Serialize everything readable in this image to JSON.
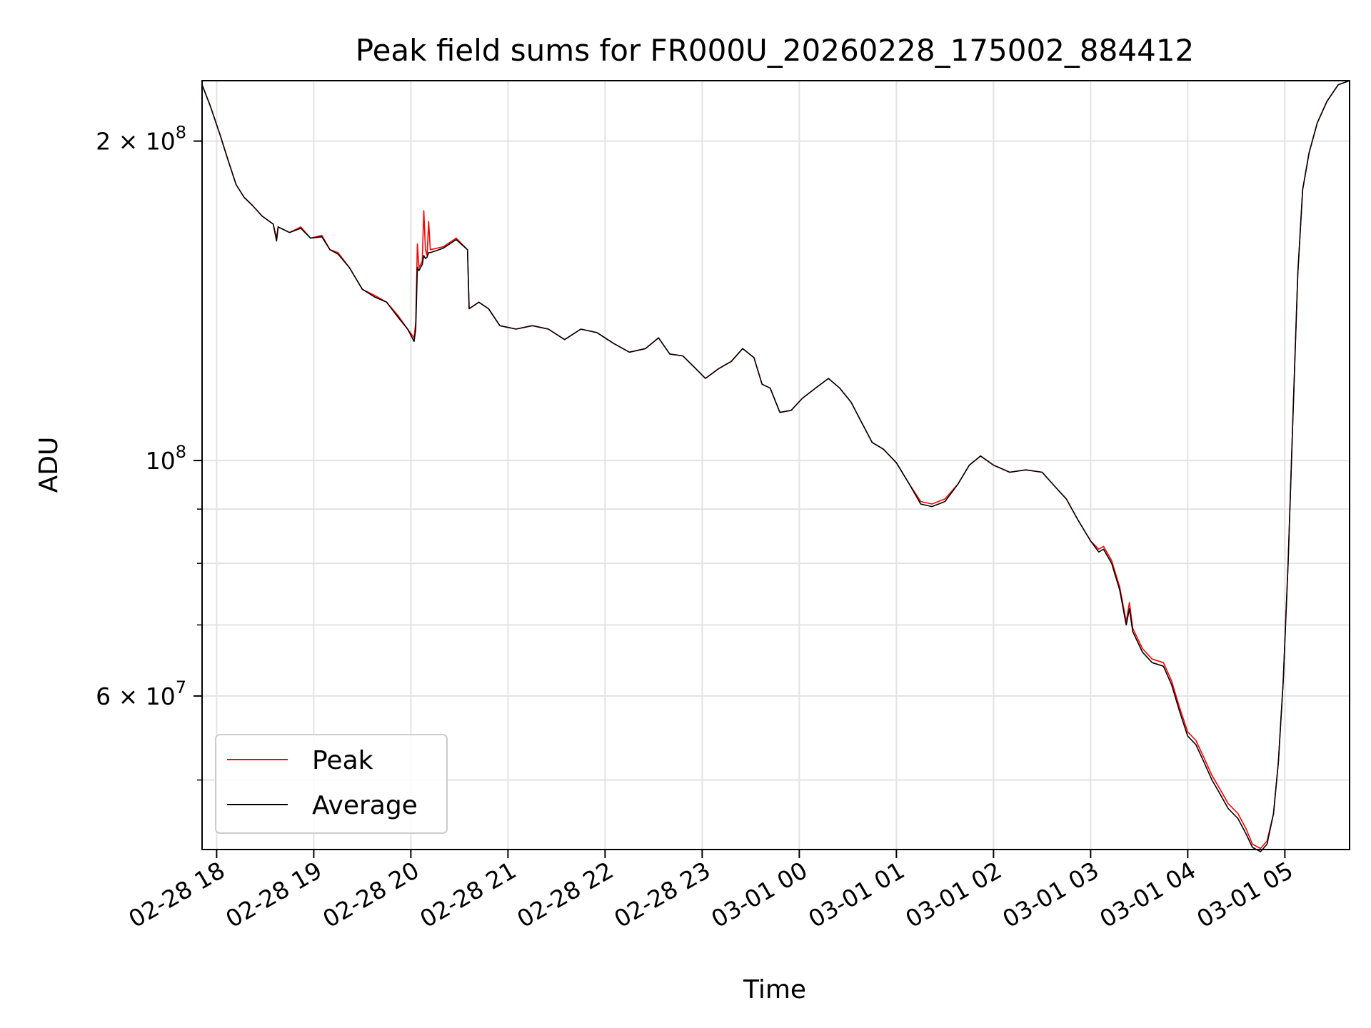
{
  "chart_data": {
    "type": "line",
    "title": "Peak field sums for FR000U_20260228_175002_884412",
    "xlabel": "Time",
    "ylabel": "ADU",
    "y_scale": "log",
    "grid": true,
    "legend_position": "lower-left",
    "x_range": [
      "02-28 17:51",
      "03-01 05:40"
    ],
    "y_range": [
      43000000,
      228000000
    ],
    "x_ticks": [
      "02-28 18",
      "02-28 19",
      "02-28 20",
      "02-28 21",
      "02-28 22",
      "02-28 23",
      "03-01 00",
      "03-01 01",
      "03-01 02",
      "03-01 03",
      "03-01 04",
      "03-01 05"
    ],
    "y_major_ticks": [
      {
        "value": 200000000,
        "mantissa": "2",
        "exponent": "8"
      },
      {
        "value": 100000000,
        "mantissa": "",
        "exponent": "8"
      },
      {
        "value": 60000000,
        "mantissa": "6",
        "exponent": "7"
      }
    ],
    "y_minor_ticks": [
      50000000,
      70000000,
      80000000,
      90000000,
      300000000
    ],
    "series": [
      {
        "name": "Peak",
        "color": "#ff0000",
        "points": [
          [
            "02-28 17:51",
            226000000
          ],
          [
            "02-28 17:56",
            216000000
          ],
          [
            "02-28 18:02",
            203000000
          ],
          [
            "02-28 18:07",
            192000000
          ],
          [
            "02-28 18:12",
            182000000
          ],
          [
            "02-28 18:17",
            177000000
          ],
          [
            "02-28 18:22",
            174000000
          ],
          [
            "02-28 18:28",
            170000000
          ],
          [
            "02-28 18:35",
            167000000
          ],
          [
            "02-28 18:37",
            162000000
          ],
          [
            "02-28 18:38",
            166000000
          ],
          [
            "02-28 18:45",
            164000000
          ],
          [
            "02-28 18:52",
            166000000
          ],
          [
            "02-28 18:58",
            162000000
          ],
          [
            "02-28 19:05",
            163000000
          ],
          [
            "02-28 19:10",
            158000000
          ],
          [
            "02-28 19:15",
            157000000
          ],
          [
            "02-28 19:22",
            152000000
          ],
          [
            "02-28 19:30",
            145000000
          ],
          [
            "02-28 19:38",
            143000000
          ],
          [
            "02-28 19:45",
            141000000
          ],
          [
            "02-28 19:52",
            137000000
          ],
          [
            "02-28 19:58",
            133000000
          ],
          [
            "02-28 20:02",
            130500000
          ],
          [
            "02-28 20:03",
            135000000
          ],
          [
            "02-28 20:04",
            160000000
          ],
          [
            "02-28 20:05",
            152000000
          ],
          [
            "02-28 20:07",
            154000000
          ],
          [
            "02-28 20:08",
            172000000
          ],
          [
            "02-28 20:09",
            158000000
          ],
          [
            "02-28 20:10",
            156000000
          ],
          [
            "02-28 20:11",
            168000000
          ],
          [
            "02-28 20:12",
            158000000
          ],
          [
            "02-28 20:20",
            159000000
          ],
          [
            "02-28 20:28",
            162000000
          ],
          [
            "02-28 20:35",
            158000000
          ],
          [
            "02-28 20:36",
            139000000
          ],
          [
            "02-28 20:42",
            141000000
          ],
          [
            "02-28 20:48",
            139000000
          ],
          [
            "02-28 20:55",
            134000000
          ],
          [
            "02-28 21:05",
            133000000
          ],
          [
            "02-28 21:15",
            134000000
          ],
          [
            "02-28 21:25",
            133000000
          ],
          [
            "02-28 21:35",
            130000000
          ],
          [
            "02-28 21:45",
            133000000
          ],
          [
            "02-28 21:55",
            132000000
          ],
          [
            "02-28 22:05",
            129000000
          ],
          [
            "02-28 22:15",
            126500000
          ],
          [
            "02-28 22:25",
            127500000
          ],
          [
            "02-28 22:33",
            130500000
          ],
          [
            "02-28 22:40",
            126000000
          ],
          [
            "02-28 22:48",
            125500000
          ],
          [
            "02-28 22:55",
            122500000
          ],
          [
            "02-28 23:02",
            119500000
          ],
          [
            "02-28 23:10",
            122000000
          ],
          [
            "02-28 23:18",
            124000000
          ],
          [
            "02-28 23:25",
            127500000
          ],
          [
            "02-28 23:32",
            125000000
          ],
          [
            "02-28 23:37",
            118000000
          ],
          [
            "02-28 23:42",
            117000000
          ],
          [
            "02-28 23:48",
            111000000
          ],
          [
            "02-28 23:55",
            111500000
          ],
          [
            "03-01 00:02",
            114500000
          ],
          [
            "03-01 00:10",
            117000000
          ],
          [
            "03-01 00:18",
            119500000
          ],
          [
            "03-01 00:25",
            117000000
          ],
          [
            "03-01 00:32",
            113500000
          ],
          [
            "03-01 00:38",
            109000000
          ],
          [
            "03-01 00:45",
            104000000
          ],
          [
            "03-01 00:52",
            102500000
          ],
          [
            "03-01 01:00",
            99500000
          ],
          [
            "03-01 01:08",
            95000000
          ],
          [
            "03-01 01:15",
            91500000
          ],
          [
            "03-01 01:22",
            91000000
          ],
          [
            "03-01 01:30",
            92000000
          ],
          [
            "03-01 01:38",
            95000000
          ],
          [
            "03-01 01:45",
            99000000
          ],
          [
            "03-01 01:52",
            101000000
          ],
          [
            "03-01 02:00",
            99000000
          ],
          [
            "03-01 02:10",
            97500000
          ],
          [
            "03-01 02:20",
            98000000
          ],
          [
            "03-01 02:30",
            97500000
          ],
          [
            "03-01 02:38",
            94500000
          ],
          [
            "03-01 02:45",
            92000000
          ],
          [
            "03-01 02:52",
            88000000
          ],
          [
            "03-01 03:00",
            84000000
          ],
          [
            "03-01 03:05",
            82500000
          ],
          [
            "03-01 03:08",
            83000000
          ],
          [
            "03-01 03:13",
            80500000
          ],
          [
            "03-01 03:18",
            76000000
          ],
          [
            "03-01 03:22",
            70500000
          ],
          [
            "03-01 03:24",
            73500000
          ],
          [
            "03-01 03:26",
            69500000
          ],
          [
            "03-01 03:32",
            66500000
          ],
          [
            "03-01 03:38",
            65000000
          ],
          [
            "03-01 03:45",
            64500000
          ],
          [
            "03-01 03:50",
            62000000
          ],
          [
            "03-01 03:55",
            58500000
          ],
          [
            "03-01 04:00",
            55500000
          ],
          [
            "03-01 04:05",
            54500000
          ],
          [
            "03-01 04:10",
            52500000
          ],
          [
            "03-01 04:15",
            50500000
          ],
          [
            "03-01 04:20",
            49000000
          ],
          [
            "03-01 04:25",
            47500000
          ],
          [
            "03-01 04:31",
            46500000
          ],
          [
            "03-01 04:36",
            45000000
          ],
          [
            "03-01 04:40",
            43500000
          ],
          [
            "03-01 04:45",
            43100000
          ],
          [
            "03-01 04:49",
            43800000
          ],
          [
            "03-01 04:53",
            46500000
          ],
          [
            "03-01 04:56",
            52000000
          ],
          [
            "03-01 04:59",
            62000000
          ],
          [
            "03-01 05:02",
            80000000
          ],
          [
            "03-01 05:05",
            110000000
          ],
          [
            "03-01 05:08",
            150000000
          ],
          [
            "03-01 05:11",
            180000000
          ],
          [
            "03-01 05:15",
            195000000
          ],
          [
            "03-01 05:20",
            208000000
          ],
          [
            "03-01 05:26",
            218000000
          ],
          [
            "03-01 05:33",
            226000000
          ],
          [
            "03-01 05:40",
            228000000
          ]
        ]
      },
      {
        "name": "Average",
        "color": "#000000",
        "points": [
          [
            "02-28 17:51",
            226000000
          ],
          [
            "02-28 17:56",
            216000000
          ],
          [
            "02-28 18:02",
            203000000
          ],
          [
            "02-28 18:07",
            192000000
          ],
          [
            "02-28 18:12",
            182000000
          ],
          [
            "02-28 18:17",
            177000000
          ],
          [
            "02-28 18:22",
            174000000
          ],
          [
            "02-28 18:28",
            170000000
          ],
          [
            "02-28 18:35",
            167000000
          ],
          [
            "02-28 18:37",
            161000000
          ],
          [
            "02-28 18:38",
            166000000
          ],
          [
            "02-28 18:45",
            164000000
          ],
          [
            "02-28 18:52",
            165500000
          ],
          [
            "02-28 18:58",
            162000000
          ],
          [
            "02-28 19:05",
            162500000
          ],
          [
            "02-28 19:10",
            158000000
          ],
          [
            "02-28 19:15",
            156500000
          ],
          [
            "02-28 19:22",
            152000000
          ],
          [
            "02-28 19:30",
            145000000
          ],
          [
            "02-28 19:38",
            142500000
          ],
          [
            "02-28 19:45",
            141000000
          ],
          [
            "02-28 19:52",
            136500000
          ],
          [
            "02-28 19:58",
            133000000
          ],
          [
            "02-28 20:02",
            129500000
          ],
          [
            "02-28 20:03",
            133000000
          ],
          [
            "02-28 20:04",
            152000000
          ],
          [
            "02-28 20:05",
            151000000
          ],
          [
            "02-28 20:07",
            153000000
          ],
          [
            "02-28 20:08",
            156000000
          ],
          [
            "02-28 20:09",
            155000000
          ],
          [
            "02-28 20:10",
            155500000
          ],
          [
            "02-28 20:11",
            157000000
          ],
          [
            "02-28 20:12",
            157000000
          ],
          [
            "02-28 20:20",
            158500000
          ],
          [
            "02-28 20:28",
            161500000
          ],
          [
            "02-28 20:35",
            158000000
          ],
          [
            "02-28 20:36",
            139000000
          ],
          [
            "02-28 20:42",
            141000000
          ],
          [
            "02-28 20:48",
            139000000
          ],
          [
            "02-28 20:55",
            134000000
          ],
          [
            "02-28 21:05",
            133000000
          ],
          [
            "02-28 21:15",
            134000000
          ],
          [
            "02-28 21:25",
            133000000
          ],
          [
            "02-28 21:35",
            130000000
          ],
          [
            "02-28 21:45",
            133000000
          ],
          [
            "02-28 21:55",
            132000000
          ],
          [
            "02-28 22:05",
            129000000
          ],
          [
            "02-28 22:15",
            126500000
          ],
          [
            "02-28 22:25",
            127500000
          ],
          [
            "02-28 22:33",
            130500000
          ],
          [
            "02-28 22:40",
            126000000
          ],
          [
            "02-28 22:48",
            125500000
          ],
          [
            "02-28 22:55",
            122500000
          ],
          [
            "02-28 23:02",
            119500000
          ],
          [
            "02-28 23:10",
            122000000
          ],
          [
            "02-28 23:18",
            124000000
          ],
          [
            "02-28 23:25",
            127500000
          ],
          [
            "02-28 23:32",
            125000000
          ],
          [
            "02-28 23:37",
            118000000
          ],
          [
            "02-28 23:42",
            117000000
          ],
          [
            "02-28 23:48",
            111000000
          ],
          [
            "02-28 23:55",
            111500000
          ],
          [
            "03-01 00:02",
            114500000
          ],
          [
            "03-01 00:10",
            117000000
          ],
          [
            "03-01 00:18",
            119500000
          ],
          [
            "03-01 00:25",
            117000000
          ],
          [
            "03-01 00:32",
            113500000
          ],
          [
            "03-01 00:38",
            109000000
          ],
          [
            "03-01 00:45",
            104000000
          ],
          [
            "03-01 00:52",
            102500000
          ],
          [
            "03-01 01:00",
            99500000
          ],
          [
            "03-01 01:08",
            95000000
          ],
          [
            "03-01 01:15",
            91000000
          ],
          [
            "03-01 01:22",
            90500000
          ],
          [
            "03-01 01:30",
            91500000
          ],
          [
            "03-01 01:38",
            95000000
          ],
          [
            "03-01 01:45",
            99000000
          ],
          [
            "03-01 01:52",
            101000000
          ],
          [
            "03-01 02:00",
            99000000
          ],
          [
            "03-01 02:10",
            97500000
          ],
          [
            "03-01 02:20",
            98000000
          ],
          [
            "03-01 02:30",
            97500000
          ],
          [
            "03-01 02:38",
            94500000
          ],
          [
            "03-01 02:45",
            92000000
          ],
          [
            "03-01 02:52",
            88000000
          ],
          [
            "03-01 03:00",
            84000000
          ],
          [
            "03-01 03:05",
            82000000
          ],
          [
            "03-01 03:08",
            82500000
          ],
          [
            "03-01 03:13",
            80000000
          ],
          [
            "03-01 03:18",
            75500000
          ],
          [
            "03-01 03:22",
            70000000
          ],
          [
            "03-01 03:24",
            72500000
          ],
          [
            "03-01 03:26",
            69000000
          ],
          [
            "03-01 03:32",
            66000000
          ],
          [
            "03-01 03:38",
            64500000
          ],
          [
            "03-01 03:45",
            64000000
          ],
          [
            "03-01 03:50",
            61500000
          ],
          [
            "03-01 03:55",
            58000000
          ],
          [
            "03-01 04:00",
            55000000
          ],
          [
            "03-01 04:05",
            54000000
          ],
          [
            "03-01 04:10",
            52000000
          ],
          [
            "03-01 04:15",
            50000000
          ],
          [
            "03-01 04:20",
            48500000
          ],
          [
            "03-01 04:25",
            47000000
          ],
          [
            "03-01 04:31",
            46000000
          ],
          [
            "03-01 04:36",
            44500000
          ],
          [
            "03-01 04:40",
            43200000
          ],
          [
            "03-01 04:45",
            42800000
          ],
          [
            "03-01 04:49",
            43500000
          ],
          [
            "03-01 04:53",
            46500000
          ],
          [
            "03-01 04:56",
            52000000
          ],
          [
            "03-01 04:59",
            62000000
          ],
          [
            "03-01 05:02",
            80000000
          ],
          [
            "03-01 05:05",
            110000000
          ],
          [
            "03-01 05:08",
            150000000
          ],
          [
            "03-01 05:11",
            180000000
          ],
          [
            "03-01 05:15",
            195000000
          ],
          [
            "03-01 05:20",
            208000000
          ],
          [
            "03-01 05:26",
            218000000
          ],
          [
            "03-01 05:33",
            226000000
          ],
          [
            "03-01 05:40",
            228000000
          ]
        ]
      }
    ]
  }
}
